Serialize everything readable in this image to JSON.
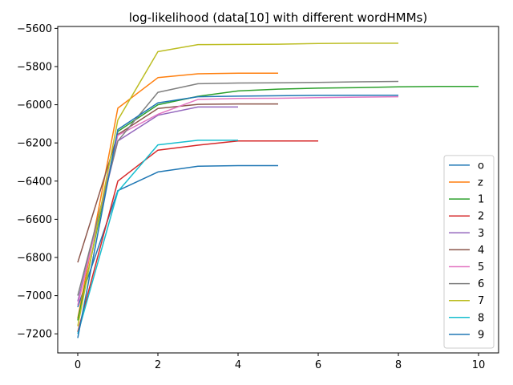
{
  "chart_data": {
    "type": "line",
    "title": "log-likelihood (data[10] with different wordHMMs)",
    "xlabel": "",
    "ylabel": "",
    "xlim": [
      -0.5,
      10.5
    ],
    "ylim": [
      -7300,
      -5590
    ],
    "xticks": [
      0,
      2,
      4,
      6,
      8,
      10
    ],
    "yticks": [
      -5600,
      -5800,
      -6000,
      -6200,
      -6400,
      -6600,
      -6800,
      -7000,
      -7200
    ],
    "grid": false,
    "legend_position": "lower-right",
    "series": [
      {
        "name": "o",
        "color": "#1f77b4",
        "x": [
          0,
          1,
          2,
          3,
          4,
          5
        ],
        "y": [
          -7060,
          -6450,
          -6352,
          -6322,
          -6319,
          -6319
        ]
      },
      {
        "name": "z",
        "color": "#ff7f0e",
        "x": [
          0,
          1,
          2,
          3,
          4,
          5
        ],
        "y": [
          -7120,
          -6018,
          -5858,
          -5838,
          -5835,
          -5835
        ]
      },
      {
        "name": "1",
        "color": "#2ca02c",
        "x": [
          0,
          1,
          2,
          3,
          4,
          5,
          6,
          7,
          8,
          9,
          10
        ],
        "y": [
          -7130,
          -6140,
          -6000,
          -5956,
          -5928,
          -5918,
          -5913,
          -5910,
          -5906,
          -5904,
          -5904
        ]
      },
      {
        "name": "2",
        "color": "#d62728",
        "x": [
          0,
          1,
          2,
          3,
          4,
          5,
          6
        ],
        "y": [
          -7190,
          -6400,
          -6238,
          -6212,
          -6190,
          -6190,
          -6190
        ]
      },
      {
        "name": "3",
        "color": "#9467bd",
        "x": [
          0,
          1,
          2,
          3,
          4
        ],
        "y": [
          -7030,
          -6190,
          -6055,
          -6012,
          -6012
        ]
      },
      {
        "name": "4",
        "color": "#8c564b",
        "x": [
          0,
          1,
          2,
          3,
          4,
          5
        ],
        "y": [
          -6826,
          -6156,
          -6020,
          -5998,
          -5996,
          -5996
        ]
      },
      {
        "name": "5",
        "color": "#e377c2",
        "x": [
          0,
          1,
          2,
          3,
          4,
          5,
          6,
          7,
          8
        ],
        "y": [
          -7050,
          -6160,
          -6050,
          -5972,
          -5967,
          -5966,
          -5963,
          -5960,
          -5958
        ]
      },
      {
        "name": "6",
        "color": "#7f7f7f",
        "x": [
          0,
          1,
          2,
          3,
          4,
          5,
          6,
          7,
          8
        ],
        "y": [
          -7000,
          -6190,
          -5935,
          -5890,
          -5886,
          -5885,
          -5883,
          -5880,
          -5878
        ]
      },
      {
        "name": "7",
        "color": "#bcbd22",
        "x": [
          0,
          1,
          2,
          3,
          4,
          5,
          6,
          7,
          8
        ],
        "y": [
          -7160,
          -6080,
          -5722,
          -5685,
          -5684,
          -5683,
          -5679,
          -5678,
          -5678
        ]
      },
      {
        "name": "8",
        "color": "#17becf",
        "x": [
          0,
          1,
          2,
          3,
          4
        ],
        "y": [
          -7200,
          -6455,
          -6210,
          -6186,
          -6186
        ]
      },
      {
        "name": "9",
        "color": "#1f77b4",
        "x": [
          0,
          1,
          2,
          3,
          4,
          5,
          6,
          7,
          8
        ],
        "y": [
          -7222,
          -6130,
          -5990,
          -5958,
          -5955,
          -5953,
          -5951,
          -5950,
          -5950
        ]
      }
    ]
  }
}
